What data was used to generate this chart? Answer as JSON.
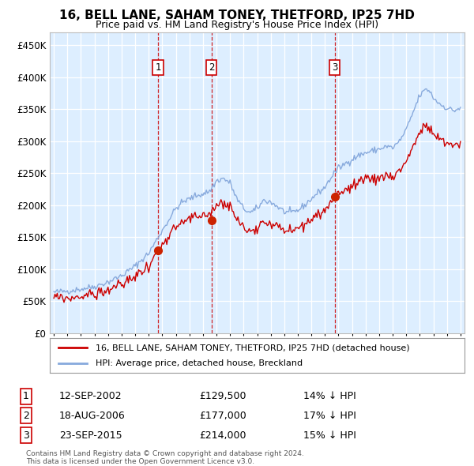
{
  "title": "16, BELL LANE, SAHAM TONEY, THETFORD, IP25 7HD",
  "subtitle": "Price paid vs. HM Land Registry's House Price Index (HPI)",
  "legend_line1": "16, BELL LANE, SAHAM TONEY, THETFORD, IP25 7HD (detached house)",
  "legend_line2": "HPI: Average price, detached house, Breckland",
  "footer1": "Contains HM Land Registry data © Crown copyright and database right 2024.",
  "footer2": "This data is licensed under the Open Government Licence v3.0.",
  "sale_dates": [
    "12-SEP-2002",
    "18-AUG-2006",
    "23-SEP-2015"
  ],
  "sale_prices": [
    129500,
    177000,
    214000
  ],
  "sale_labels": [
    "1",
    "2",
    "3"
  ],
  "sale_pcts": [
    "14% ↓ HPI",
    "17% ↓ HPI",
    "15% ↓ HPI"
  ],
  "hpi_color": "#88aadd",
  "price_color": "#cc0000",
  "marker_color": "#cc2200",
  "sale_line_color": "#cc0000",
  "background_color": "#ddeeff",
  "ylim": [
    0,
    470000
  ],
  "yticks": [
    0,
    50000,
    100000,
    150000,
    200000,
    250000,
    300000,
    350000,
    400000,
    450000
  ],
  "xlim_start": 1994.7,
  "xlim_end": 2025.3
}
